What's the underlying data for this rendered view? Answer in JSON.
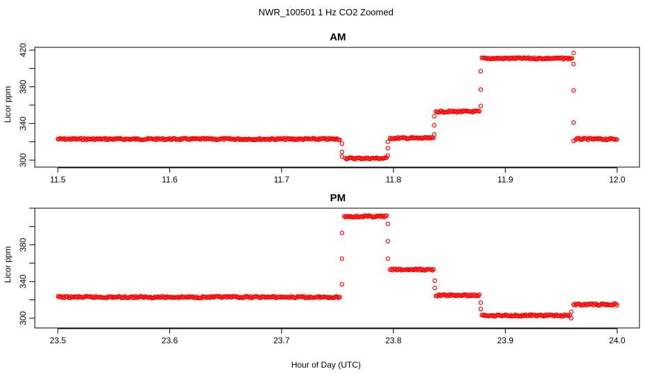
{
  "title": "NWR_100501  1 Hz CO2 Zoomed",
  "xlabel": "Hour of Day (UTC)",
  "point_color": "#ff0000",
  "chart_data": [
    {
      "type": "scatter",
      "title": "AM",
      "xlabel": "",
      "ylabel": "Licor ppm",
      "xlim": [
        11.5,
        12.0
      ],
      "ylim": [
        300,
        420
      ],
      "xticks": [
        "11.5",
        "11.6",
        "11.7",
        "11.8",
        "11.9",
        "12.0"
      ],
      "yticks": [
        "300",
        "340",
        "380",
        "420"
      ],
      "grid": false,
      "segments": [
        {
          "x_start": 11.5,
          "x_end": 11.753,
          "y": 323
        },
        {
          "x_start": 11.757,
          "x_end": 11.794,
          "y": 302
        },
        {
          "x_start": 11.797,
          "x_end": 11.836,
          "y": 324
        },
        {
          "x_start": 11.838,
          "x_end": 11.877,
          "y": 353
        },
        {
          "x_start": 11.879,
          "x_end": 11.96,
          "y": 411
        },
        {
          "x_start": 11.963,
          "x_end": 12.0,
          "y": 323
        }
      ],
      "transitions": [
        {
          "x": 11.754,
          "y": [
            318,
            309,
            304
          ]
        },
        {
          "x": 11.795,
          "y": [
            305,
            313,
            320
          ]
        },
        {
          "x": 11.8365,
          "y": [
            328,
            338,
            348
          ]
        },
        {
          "x": 11.878,
          "y": [
            359,
            377,
            397
          ]
        },
        {
          "x": 11.961,
          "y": [
            417,
            405,
            376,
            341,
            321
          ]
        }
      ]
    },
    {
      "type": "scatter",
      "title": "PM",
      "xlabel": "",
      "ylabel": "Licor ppm",
      "xlim": [
        23.5,
        24.0
      ],
      "ylim": [
        300,
        420
      ],
      "xticks": [
        "23.5",
        "23.6",
        "23.7",
        "23.8",
        "23.9",
        "24.0"
      ],
      "yticks": [
        "300",
        "340",
        "380"
      ],
      "grid": false,
      "segments": [
        {
          "x_start": 23.5,
          "x_end": 23.753,
          "y": 323
        },
        {
          "x_start": 23.756,
          "x_end": 23.794,
          "y": 411
        },
        {
          "x_start": 23.797,
          "x_end": 23.836,
          "y": 353
        },
        {
          "x_start": 23.838,
          "x_end": 23.877,
          "y": 325
        },
        {
          "x_start": 23.879,
          "x_end": 23.958,
          "y": 303
        },
        {
          "x_start": 23.961,
          "x_end": 24.0,
          "y": 315
        }
      ],
      "transitions": [
        {
          "x": 23.754,
          "y": [
            337,
            365,
            393
          ]
        },
        {
          "x": 23.795,
          "y": [
            403,
            384,
            365
          ]
        },
        {
          "x": 23.837,
          "y": [
            341,
            333
          ]
        },
        {
          "x": 23.878,
          "y": [
            317,
            310
          ]
        },
        {
          "x": 23.959,
          "y": [
            300,
            307
          ]
        }
      ]
    }
  ]
}
